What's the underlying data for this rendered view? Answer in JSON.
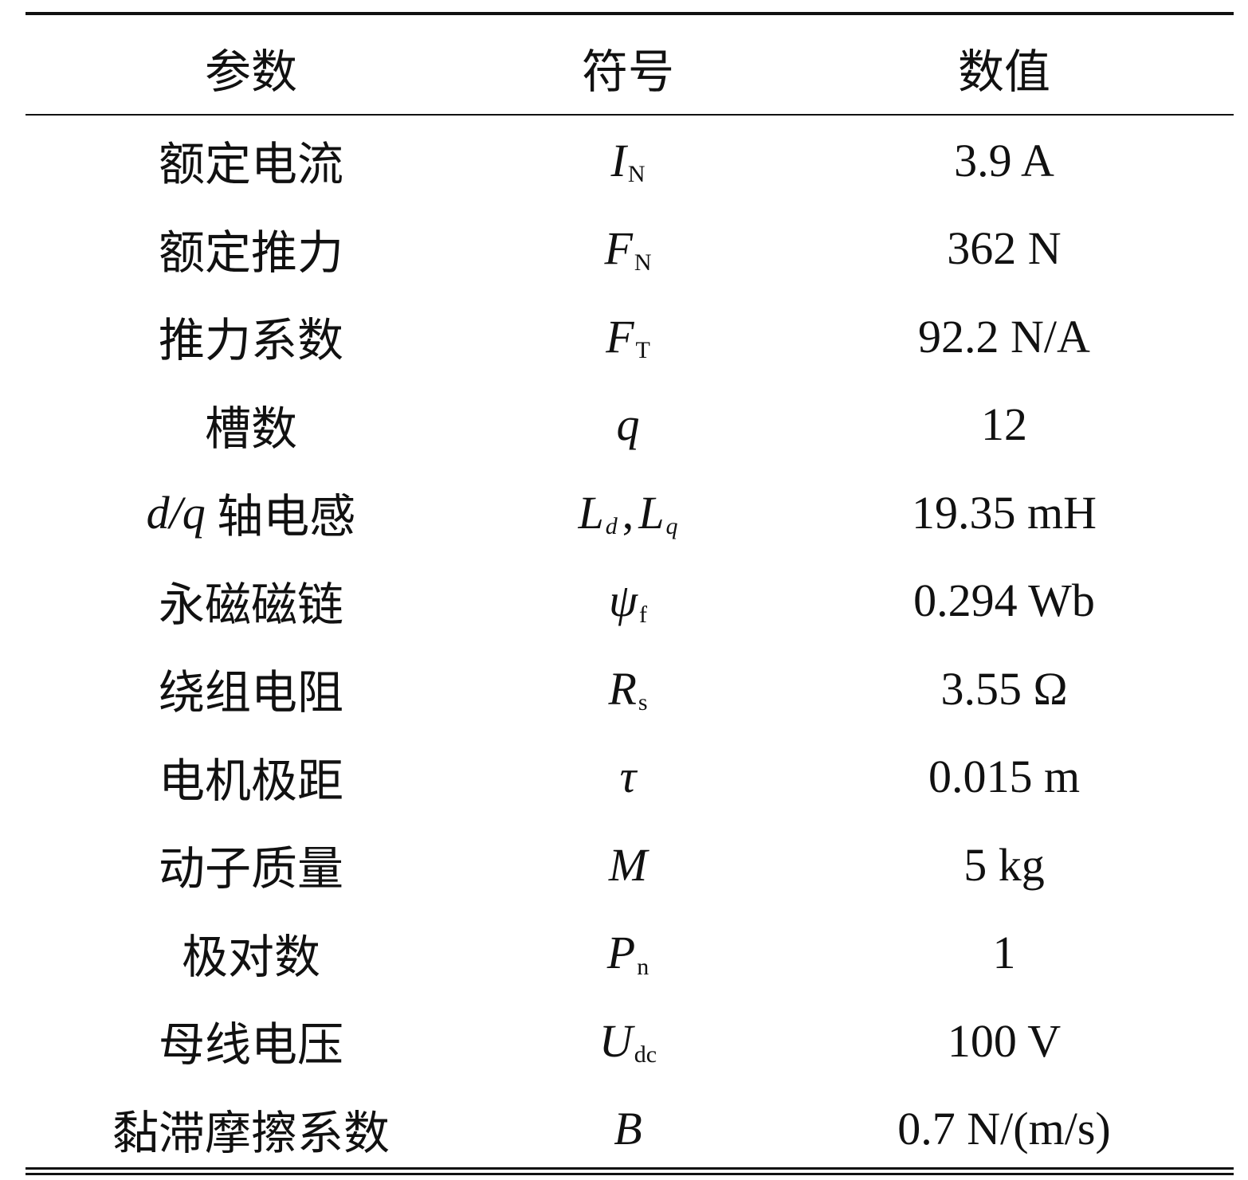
{
  "table": {
    "headers": [
      "参数",
      "符号",
      "数值"
    ],
    "rows": [
      {
        "param_italic": "",
        "param": "额定电流",
        "symbol": "I",
        "sub": "N",
        "value": "3.9 A"
      },
      {
        "param_italic": "",
        "param": "额定推力",
        "symbol": "F",
        "sub": "N",
        "value": "362 N"
      },
      {
        "param_italic": "",
        "param": "推力系数",
        "symbol": "F",
        "sub": "T",
        "value": "92.2 N/A"
      },
      {
        "param_italic": "",
        "param": "槽数",
        "symbol": "q",
        "sub": "",
        "value": "12"
      },
      {
        "param_italic": "d/q",
        "param": " 轴电感",
        "symbol": "L",
        "sub": "d",
        "sep": ",",
        "symbol2": "L",
        "sub2": "q",
        "value": "19.35 mH"
      },
      {
        "param_italic": "",
        "param": "永磁磁链",
        "symbol": "ψ",
        "sub": "f",
        "value": "0.294 Wb"
      },
      {
        "param_italic": "",
        "param": "绕组电阻",
        "symbol": "R",
        "sub": "s",
        "value": "3.55 Ω"
      },
      {
        "param_italic": "",
        "param": "电机极距",
        "symbol": "τ",
        "sub": "",
        "value": "0.015 m"
      },
      {
        "param_italic": "",
        "param": "动子质量",
        "symbol": "M",
        "sub": "",
        "value": "5 kg"
      },
      {
        "param_italic": "",
        "param": "极对数",
        "symbol": "P",
        "sub": "n",
        "value": "1"
      },
      {
        "param_italic": "",
        "param": "母线电压",
        "symbol": "U",
        "sub": "dc",
        "value": "100 V"
      },
      {
        "param_italic": "",
        "param": "黏滞摩擦系数",
        "symbol": "B",
        "sub": "",
        "value": "0.7 N/(m/s)"
      }
    ]
  }
}
